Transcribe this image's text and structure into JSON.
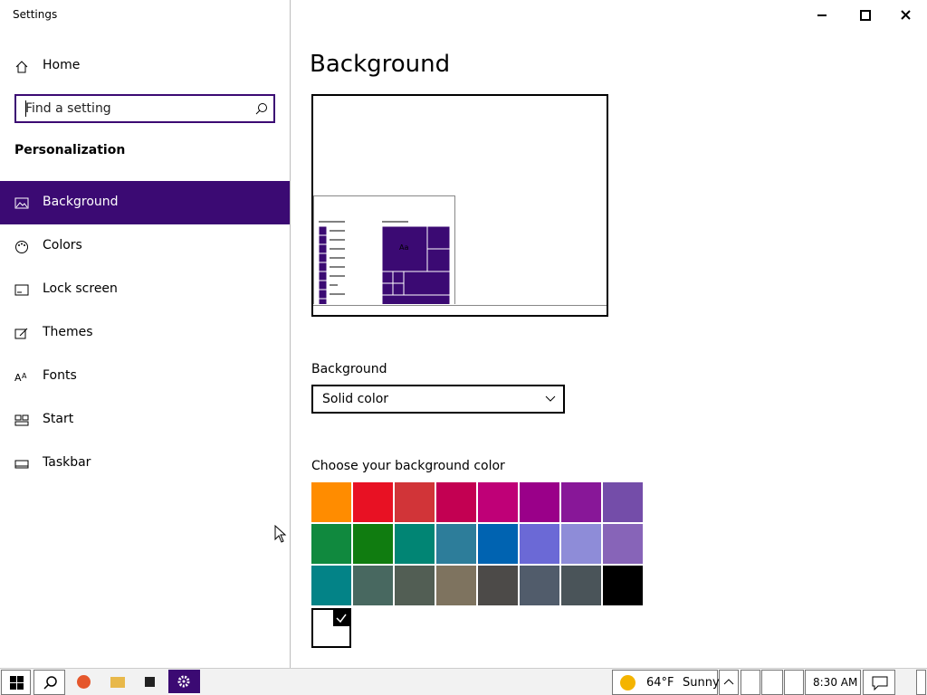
{
  "window": {
    "title": "Settings"
  },
  "sidebar": {
    "home": "Home",
    "search_placeholder": "Find a setting",
    "section": "Personalization",
    "items": [
      "Background",
      "Colors",
      "Lock screen",
      "Themes",
      "Fonts",
      "Start",
      "Taskbar"
    ],
    "active": 0
  },
  "main": {
    "heading": "Background",
    "preview_text": "Aa",
    "background_label": "Background",
    "background_value": "Solid color",
    "color_label": "Choose your background color",
    "swatches": [
      "#ff8c00",
      "#e81123",
      "#d13438",
      "#c30052",
      "#bf0077",
      "#9a0089",
      "#881798",
      "#744da9",
      "#10893e",
      "#107c10",
      "#018574",
      "#2d7d9a",
      "#0063b1",
      "#6b69d6",
      "#8e8cd8",
      "#8764b8",
      "#038387",
      "#486860",
      "#525e54",
      "#7e735f",
      "#4c4a48",
      "#515c6b",
      "#4a5459",
      "#000000",
      "#ffffff"
    ],
    "selected_swatch": 24
  },
  "taskbar": {
    "temperature": "64°F",
    "weather": "Sunny",
    "time": "8:30 AM"
  }
}
